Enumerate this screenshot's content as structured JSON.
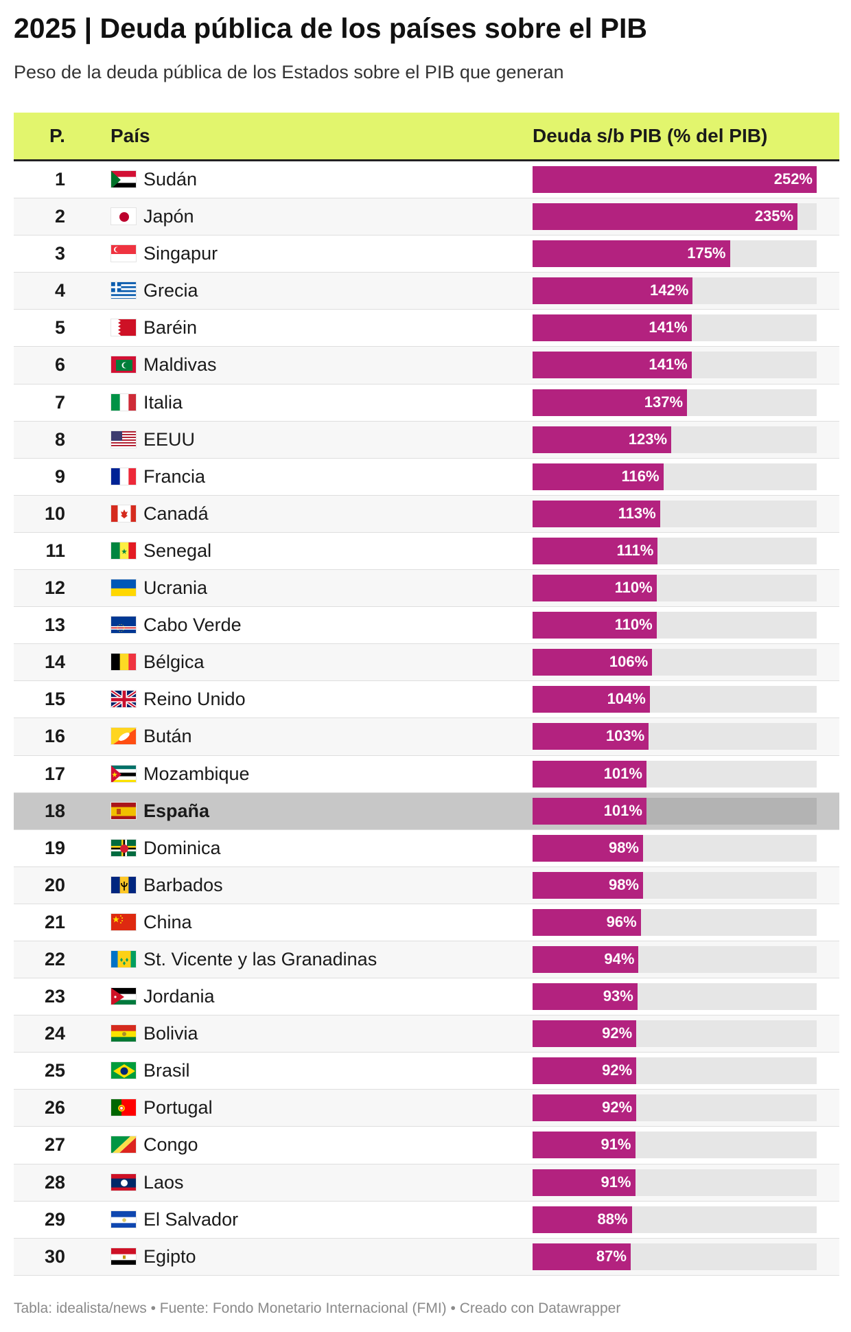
{
  "header": {
    "title": "2025 | Deuda pública de los países sobre el PIB",
    "subtitle": "Peso de la deuda pública de los Estados sobre el PIB que generan"
  },
  "columns": {
    "rank": "P.",
    "country": "País",
    "value": "Deuda s/b PIB (% del PIB)"
  },
  "footer": {
    "credit": "Tabla: idealista/news • Fuente: Fondo Monetario Internacional (FMI) • Creado con Datawrapper"
  },
  "colors": {
    "header_bg": "#e2f56d",
    "bar": "#b3227f",
    "track": "#e6e6e6",
    "highlight_row": "#c7c7c7"
  },
  "chart_data": {
    "type": "table",
    "max_value": 252,
    "highlighted_country": "España",
    "rows": [
      {
        "rank": "1",
        "country": "Sudán",
        "value": 252,
        "label": "252%",
        "flag": "flag-sudan"
      },
      {
        "rank": "2",
        "country": "Japón",
        "value": 235,
        "label": "235%",
        "flag": "flag-japan"
      },
      {
        "rank": "3",
        "country": "Singapur",
        "value": 175,
        "label": "175%",
        "flag": "flag-singapore"
      },
      {
        "rank": "4",
        "country": "Grecia",
        "value": 142,
        "label": "142%",
        "flag": "flag-greece"
      },
      {
        "rank": "5",
        "country": "Baréin",
        "value": 141,
        "label": "141%",
        "flag": "flag-bahrain"
      },
      {
        "rank": "6",
        "country": "Maldivas",
        "value": 141,
        "label": "141%",
        "flag": "flag-maldives"
      },
      {
        "rank": "7",
        "country": "Italia",
        "value": 137,
        "label": "137%",
        "flag": "flag-italy"
      },
      {
        "rank": "8",
        "country": "EEUU",
        "value": 123,
        "label": "123%",
        "flag": "flag-usa"
      },
      {
        "rank": "9",
        "country": "Francia",
        "value": 116,
        "label": "116%",
        "flag": "flag-france"
      },
      {
        "rank": "10",
        "country": "Canadá",
        "value": 113,
        "label": "113%",
        "flag": "flag-canada"
      },
      {
        "rank": "11",
        "country": "Senegal",
        "value": 111,
        "label": "111%",
        "flag": "flag-senegal"
      },
      {
        "rank": "12",
        "country": "Ucrania",
        "value": 110,
        "label": "110%",
        "flag": "flag-ukraine"
      },
      {
        "rank": "13",
        "country": "Cabo Verde",
        "value": 110,
        "label": "110%",
        "flag": "flag-cape-verde"
      },
      {
        "rank": "14",
        "country": "Bélgica",
        "value": 106,
        "label": "106%",
        "flag": "flag-belgium"
      },
      {
        "rank": "15",
        "country": "Reino Unido",
        "value": 104,
        "label": "104%",
        "flag": "flag-uk"
      },
      {
        "rank": "16",
        "country": "Bután",
        "value": 103,
        "label": "103%",
        "flag": "flag-bhutan"
      },
      {
        "rank": "17",
        "country": "Mozambique",
        "value": 101,
        "label": "101%",
        "flag": "flag-mozambique"
      },
      {
        "rank": "18",
        "country": "España",
        "value": 101,
        "label": "101%",
        "flag": "flag-spain"
      },
      {
        "rank": "19",
        "country": "Dominica",
        "value": 98,
        "label": "98%",
        "flag": "flag-dominica"
      },
      {
        "rank": "20",
        "country": "Barbados",
        "value": 98,
        "label": "98%",
        "flag": "flag-barbados"
      },
      {
        "rank": "21",
        "country": "China",
        "value": 96,
        "label": "96%",
        "flag": "flag-china"
      },
      {
        "rank": "22",
        "country": "St. Vicente y las Granadinas",
        "value": 94,
        "label": "94%",
        "flag": "flag-st-vincent"
      },
      {
        "rank": "23",
        "country": "Jordania",
        "value": 93,
        "label": "93%",
        "flag": "flag-jordan"
      },
      {
        "rank": "24",
        "country": "Bolivia",
        "value": 92,
        "label": "92%",
        "flag": "flag-bolivia"
      },
      {
        "rank": "25",
        "country": "Brasil",
        "value": 92,
        "label": "92%",
        "flag": "flag-brazil"
      },
      {
        "rank": "26",
        "country": "Portugal",
        "value": 92,
        "label": "92%",
        "flag": "flag-portugal"
      },
      {
        "rank": "27",
        "country": "Congo",
        "value": 91,
        "label": "91%",
        "flag": "flag-congo"
      },
      {
        "rank": "28",
        "country": "Laos",
        "value": 91,
        "label": "91%",
        "flag": "flag-laos"
      },
      {
        "rank": "29",
        "country": "El Salvador",
        "value": 88,
        "label": "88%",
        "flag": "flag-el-salvador"
      },
      {
        "rank": "30",
        "country": "Egipto",
        "value": 87,
        "label": "87%",
        "flag": "flag-egypt"
      }
    ]
  }
}
